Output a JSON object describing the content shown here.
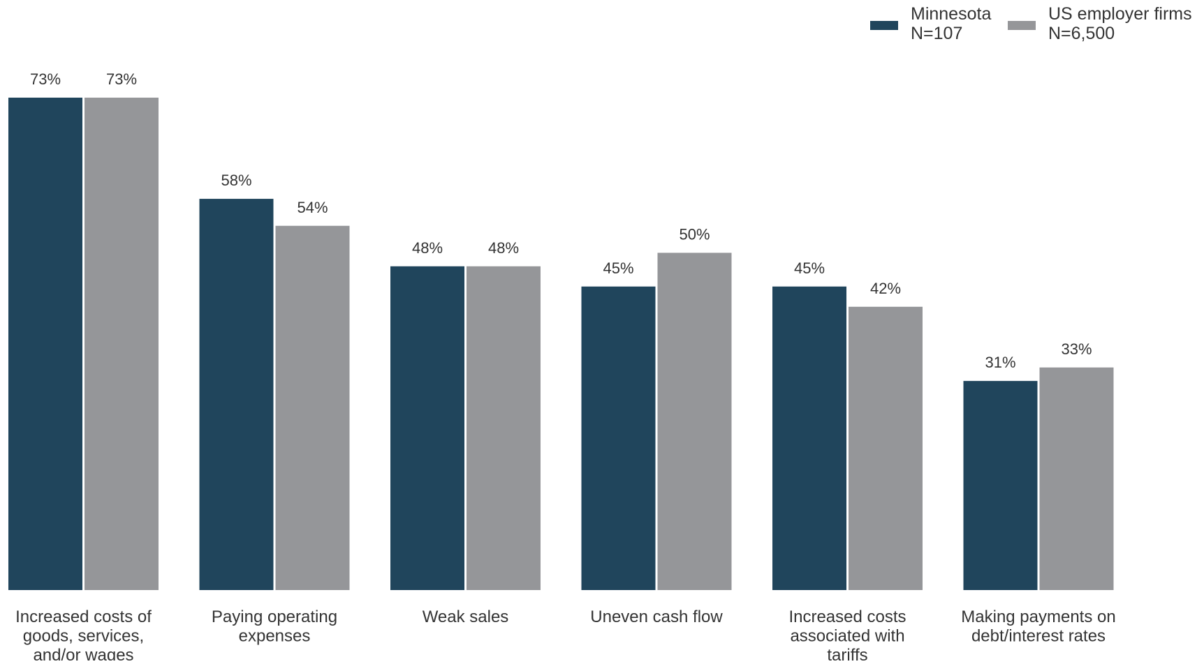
{
  "chart_data": {
    "type": "bar",
    "title": "",
    "xlabel": "",
    "ylabel": "",
    "ylim": [
      0,
      73
    ],
    "grid": false,
    "legend_position": "top-right",
    "categories": [
      "Increased costs of goods, services, and/or wages",
      "Paying operating expenses",
      "Weak sales",
      "Uneven cash flow",
      "Increased costs associated with tariffs",
      "Making payments on debt/interest rates"
    ],
    "category_label_lines": [
      [
        "Increased costs of",
        "goods, services,",
        "and/or wages"
      ],
      [
        "Paying operating",
        "expenses"
      ],
      [
        "Weak sales"
      ],
      [
        "Uneven cash flow"
      ],
      [
        "Increased costs",
        "associated with",
        "tariffs"
      ],
      [
        "Making payments on",
        "debt/interest rates"
      ]
    ],
    "series": [
      {
        "name": "Minnesota",
        "legend_lines": [
          "Minnesota",
          "N=107"
        ],
        "color": "#20455c",
        "values": [
          73,
          58,
          48,
          45,
          45,
          31
        ],
        "labels": [
          "73%",
          "58%",
          "48%",
          "45%",
          "45%",
          "31%"
        ]
      },
      {
        "name": "US employer firms",
        "legend_lines": [
          "US employer firms",
          "N=6,500"
        ],
        "color": "#959699",
        "values": [
          73,
          54,
          48,
          50,
          42,
          33
        ],
        "labels": [
          "73%",
          "54%",
          "48%",
          "50%",
          "42%",
          "33%"
        ]
      }
    ]
  }
}
